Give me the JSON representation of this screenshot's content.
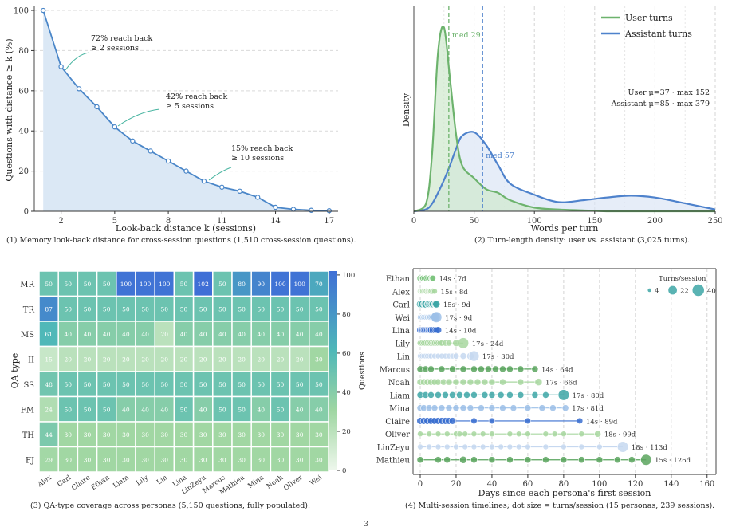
{
  "page_number": "3",
  "panels": [
    {
      "id": "p1",
      "caption": "(1)  Memory look-back distance for cross-session questions (1,510 cross-session questions).",
      "xlabel": "Look-back distance k (sessions)",
      "ylabel": "Questions with distance ≥ k (%)",
      "annotations": [
        {
          "line1": "72% reach back",
          "line2": "≥ 2 sessions"
        },
        {
          "line1": "42% reach back",
          "line2": "≥ 5 sessions"
        },
        {
          "line1": "15% reach back",
          "line2": "≥ 10 sessions"
        }
      ]
    },
    {
      "id": "p2",
      "caption": "(2)  Turn-length density: user vs. assistant (3,025 turns).",
      "xlabel": "Words per turn",
      "ylabel": "Density",
      "med_user": "med 29",
      "med_assistant": "med 57",
      "stats_user": "User  μ=37  ·  max 152",
      "stats_assistant": "Assistant  μ=85  ·  max 379"
    },
    {
      "id": "p3",
      "caption": "(3)  QA-type coverage across personas (5,150 questions, fully populated).",
      "ylabel": "QA type",
      "colorbar_label": "Questions"
    },
    {
      "id": "p4",
      "caption": "(4)  Multi-session timelines; dot size = turns/session (15 personas, 239 sessions).",
      "xlabel": "Days since each persona's first session",
      "legend_title": "Turns/session"
    }
  ],
  "chart_data": [
    {
      "type": "area",
      "x": [
        1,
        2,
        3,
        4,
        5,
        6,
        7,
        8,
        9,
        10,
        11,
        12,
        13,
        14,
        15,
        16,
        17
      ],
      "y": [
        100,
        72,
        61,
        52,
        42,
        35,
        30,
        25,
        20,
        15,
        12,
        10,
        7,
        2,
        1,
        0.5,
        0.3
      ],
      "xticks": [
        2,
        5,
        8,
        11,
        14,
        17
      ],
      "yticks": [
        0,
        20,
        40,
        60,
        80,
        100
      ],
      "xlim": [
        0.5,
        17.5
      ],
      "ylim": [
        0,
        102
      ],
      "color": "#4a86c8"
    },
    {
      "type": "area",
      "x": [
        0,
        10,
        15,
        20,
        25,
        30,
        35,
        40,
        50,
        60,
        70,
        80,
        100,
        120,
        140,
        160,
        180,
        200,
        220,
        250
      ],
      "series": [
        {
          "name": "User turns",
          "color": "#6db36d",
          "y": [
            0,
            0.04,
            0.3,
            0.86,
            1.0,
            0.72,
            0.42,
            0.25,
            0.18,
            0.12,
            0.1,
            0.06,
            0.02,
            0.01,
            0.005,
            0,
            0,
            0,
            0,
            0
          ]
        },
        {
          "name": "Assistant turns",
          "color": "#4e82cc",
          "y": [
            0,
            0.01,
            0.04,
            0.1,
            0.17,
            0.25,
            0.34,
            0.41,
            0.43,
            0.36,
            0.25,
            0.15,
            0.09,
            0.05,
            0.06,
            0.075,
            0.085,
            0.075,
            0.05,
            0.01
          ]
        }
      ],
      "xticks": [
        0,
        50,
        100,
        150,
        200,
        250
      ],
      "xlim": [
        0,
        250
      ],
      "median_user": 29,
      "median_assistant": 57,
      "legend": "top-right"
    },
    {
      "type": "heatmap",
      "rows": [
        "MR",
        "TR",
        "MS",
        "II",
        "SS",
        "FM",
        "TH",
        "FJ"
      ],
      "columns": [
        "Alex",
        "Carl",
        "Claire",
        "Ethan",
        "Liam",
        "Lily",
        "Lin",
        "Lina",
        "LinZeyu",
        "Marcus",
        "Mathieu",
        "Mina",
        "Noah",
        "Oliver",
        "Wei"
      ],
      "values": [
        [
          50,
          50,
          50,
          50,
          100,
          100,
          100,
          50,
          102,
          50,
          80,
          90,
          100,
          100,
          70
        ],
        [
          87,
          50,
          50,
          50,
          50,
          50,
          50,
          50,
          50,
          50,
          50,
          50,
          50,
          50,
          50
        ],
        [
          61,
          40,
          40,
          40,
          40,
          40,
          20,
          40,
          40,
          40,
          40,
          40,
          40,
          40,
          40
        ],
        [
          15,
          20,
          20,
          20,
          20,
          20,
          20,
          20,
          20,
          20,
          20,
          20,
          20,
          20,
          30
        ],
        [
          48,
          50,
          50,
          50,
          50,
          50,
          50,
          50,
          50,
          50,
          50,
          50,
          50,
          50,
          50
        ],
        [
          24,
          50,
          50,
          50,
          40,
          40,
          40,
          50,
          40,
          50,
          50,
          40,
          50,
          40,
          40
        ],
        [
          44,
          30,
          30,
          30,
          30,
          30,
          30,
          30,
          30,
          30,
          30,
          30,
          30,
          30,
          30
        ],
        [
          29,
          30,
          30,
          30,
          30,
          30,
          30,
          30,
          30,
          30,
          30,
          30,
          30,
          30,
          30
        ]
      ],
      "colorbar_ticks": [
        0,
        20,
        40,
        60,
        80,
        100
      ],
      "vmin": 0,
      "vmax": 102
    },
    {
      "type": "scatter",
      "personas": [
        {
          "name": "Ethan",
          "label": "14s · 7d",
          "days": [
            0,
            0.5,
            1,
            1.5,
            2,
            3,
            3.5,
            4,
            5,
            5.5,
            6,
            6.5,
            7,
            7
          ],
          "sizes": [
            8,
            5,
            6,
            7,
            5,
            6,
            8,
            5,
            6,
            7,
            5,
            6,
            6,
            7
          ],
          "color": "#7cc47f"
        },
        {
          "name": "Alex",
          "label": "15s · 8d",
          "days": [
            0,
            0.5,
            1,
            1.5,
            2,
            2.5,
            3,
            3.5,
            4,
            4.5,
            5,
            5.5,
            6,
            7,
            8
          ],
          "sizes": [
            6,
            6,
            5,
            7,
            6,
            5,
            6,
            7,
            5,
            6,
            6,
            5,
            6,
            7,
            6
          ],
          "color": "#a8d7a0"
        },
        {
          "name": "Carl",
          "label": "15s · 9d",
          "days": [
            0,
            0.5,
            1,
            2,
            2.5,
            3,
            4,
            4.5,
            5,
            6,
            6.5,
            7,
            8,
            8.5,
            9
          ],
          "sizes": [
            10,
            8,
            9,
            8,
            9,
            10,
            8,
            9,
            8,
            9,
            8,
            9,
            8,
            9,
            10
          ],
          "color": "#3da6a6"
        },
        {
          "name": "Wei",
          "label": "17s · 9d",
          "days": [
            0,
            0.5,
            1,
            1.5,
            2,
            2.5,
            3,
            3.5,
            4,
            4.5,
            5,
            5.5,
            6,
            7,
            8,
            8.5,
            9
          ],
          "sizes": [
            6,
            5,
            6,
            5,
            6,
            5,
            6,
            5,
            6,
            5,
            6,
            7,
            6,
            8,
            10,
            16,
            22
          ],
          "color": "#9cc0e8"
        },
        {
          "name": "Lina",
          "label": "14s · 10d",
          "days": [
            0,
            0.7,
            1.4,
            2,
            2.7,
            3.4,
            4,
            4.7,
            5.4,
            6,
            7,
            8,
            9,
            10
          ],
          "sizes": [
            9,
            9,
            9,
            9,
            9,
            9,
            9,
            9,
            9,
            9,
            9,
            9,
            9,
            9
          ],
          "color": "#3a6fd0"
        },
        {
          "name": "Lily",
          "label": "17s · 24d",
          "days": [
            0,
            1,
            2,
            3,
            4,
            5,
            6,
            7,
            8,
            9,
            10,
            11,
            12,
            14,
            16,
            20,
            24
          ],
          "sizes": [
            7,
            7,
            7,
            7,
            7,
            7,
            7,
            7,
            7,
            7,
            7,
            7,
            7,
            7,
            7,
            9,
            22
          ],
          "color": "#a8d7a0"
        },
        {
          "name": "Lin",
          "label": "17s · 30d",
          "days": [
            0,
            1,
            2,
            3,
            4,
            5,
            6,
            8,
            10,
            12,
            14,
            16,
            18,
            20,
            24,
            28,
            30
          ],
          "sizes": [
            6,
            6,
            6,
            6,
            6,
            6,
            6,
            6,
            6,
            6,
            6,
            6,
            6,
            7,
            8,
            10,
            20
          ],
          "color": "#c6d8f0"
        },
        {
          "name": "Marcus",
          "label": "14s · 64d",
          "days": [
            0,
            3,
            6,
            12,
            18,
            24,
            30,
            34,
            38,
            42,
            46,
            50,
            56,
            64
          ],
          "sizes": [
            8,
            8,
            8,
            8,
            8,
            8,
            8,
            8,
            8,
            8,
            8,
            8,
            8,
            8
          ],
          "color": "#5aa55e"
        },
        {
          "name": "Noah",
          "label": "17s · 66d",
          "days": [
            0,
            2,
            4,
            6,
            8,
            10,
            13,
            16,
            20,
            24,
            28,
            32,
            36,
            40,
            46,
            56,
            66
          ],
          "sizes": [
            8,
            8,
            8,
            8,
            8,
            8,
            8,
            8,
            8,
            8,
            8,
            8,
            8,
            8,
            8,
            8,
            10
          ],
          "color": "#a8d7a0"
        },
        {
          "name": "Liam",
          "label": "17s · 80d",
          "days": [
            0,
            3,
            6,
            10,
            14,
            18,
            22,
            26,
            30,
            36,
            40,
            45,
            50,
            56,
            64,
            70,
            80
          ],
          "sizes": [
            8,
            8,
            8,
            8,
            8,
            8,
            8,
            8,
            8,
            8,
            8,
            8,
            8,
            8,
            8,
            8,
            22
          ],
          "color": "#3da6a6"
        },
        {
          "name": "Mina",
          "label": "17s · 81d",
          "days": [
            0,
            2,
            5,
            8,
            12,
            16,
            20,
            24,
            28,
            34,
            40,
            46,
            52,
            60,
            68,
            74,
            81
          ],
          "sizes": [
            8,
            8,
            8,
            8,
            8,
            8,
            8,
            8,
            8,
            8,
            8,
            8,
            8,
            8,
            8,
            8,
            8
          ],
          "color": "#9cc0e8"
        },
        {
          "name": "Claire",
          "label": "14s · 89d",
          "days": [
            0,
            2,
            4,
            6,
            8,
            10,
            12,
            14,
            16,
            18,
            30,
            40,
            60,
            89
          ],
          "sizes": [
            9,
            9,
            9,
            9,
            9,
            9,
            9,
            9,
            9,
            9,
            7,
            7,
            7,
            7
          ],
          "color": "#3a6fd0"
        },
        {
          "name": "Oliver",
          "label": "18s · 99d",
          "days": [
            0,
            5,
            10,
            15,
            20,
            22,
            25,
            30,
            35,
            40,
            50,
            55,
            60,
            70,
            75,
            80,
            90,
            99
          ],
          "sizes": [
            6,
            6,
            6,
            6,
            6,
            6,
            6,
            6,
            6,
            6,
            6,
            6,
            6,
            6,
            6,
            6,
            6,
            8
          ],
          "color": "#a8d7a0"
        },
        {
          "name": "LinZeyu",
          "label": "18s · 113d",
          "days": [
            0,
            5,
            10,
            15,
            20,
            25,
            30,
            35,
            40,
            45,
            50,
            55,
            60,
            70,
            80,
            90,
            100,
            113
          ],
          "sizes": [
            6,
            6,
            6,
            6,
            6,
            6,
            6,
            6,
            6,
            6,
            6,
            6,
            6,
            6,
            6,
            6,
            6,
            22
          ],
          "color": "#c6d8f0"
        },
        {
          "name": "Mathieu",
          "label": "15s · 126d",
          "days": [
            0,
            10,
            15,
            24,
            30,
            40,
            50,
            60,
            70,
            80,
            90,
            100,
            110,
            118,
            126
          ],
          "sizes": [
            8,
            8,
            8,
            10,
            8,
            8,
            8,
            8,
            8,
            8,
            8,
            8,
            8,
            8,
            22
          ],
          "color": "#5aa55e"
        }
      ],
      "xticks": [
        0,
        20,
        40,
        60,
        80,
        100,
        120,
        140,
        160
      ],
      "xlim": [
        -4,
        165
      ],
      "legend": {
        "title": "Turns/session",
        "items": [
          {
            "label": "4",
            "size": 4
          },
          {
            "label": "22",
            "size": 22
          },
          {
            "label": "40",
            "size": 40
          }
        ]
      }
    }
  ]
}
